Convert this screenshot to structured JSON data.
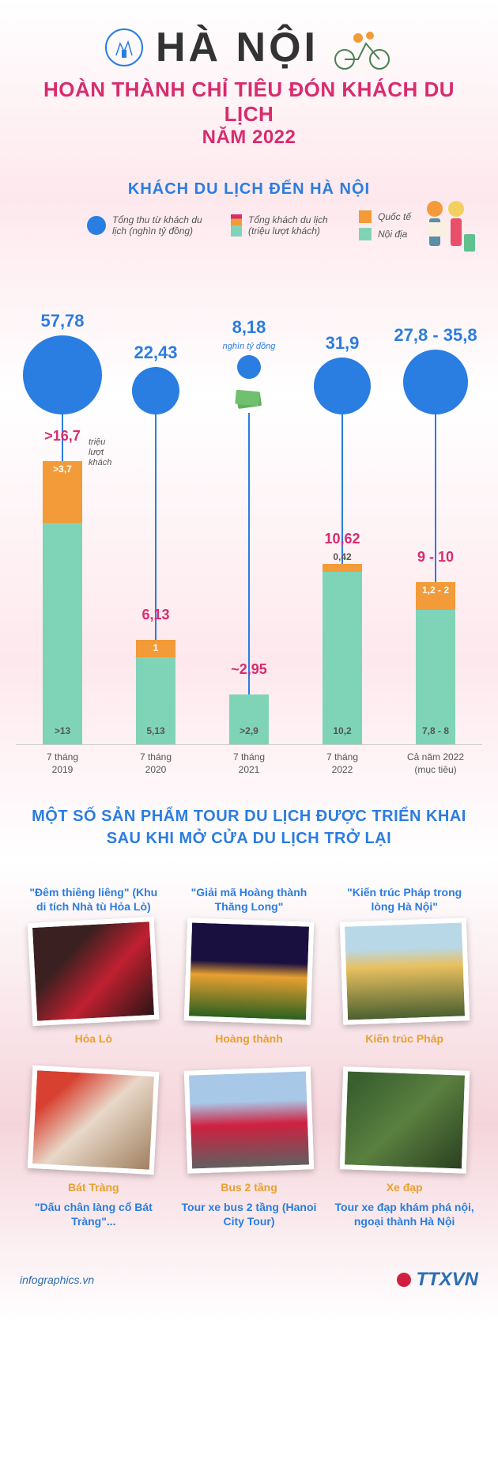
{
  "header": {
    "title": "HÀ NỘI",
    "subtitle1": "HOÀN THÀNH CHỈ TIÊU ĐÓN KHÁCH DU LỊCH",
    "subtitle2": "NĂM 2022"
  },
  "section1": {
    "title": "KHÁCH DU LỊCH ĐẾN HÀ NỘI",
    "legend": {
      "revenue": "Tổng thu từ khách du lịch (nghìn tỷ đồng)",
      "tourists": "Tổng khách du lịch (triệu lượt khách)",
      "intl": "Quốc tế",
      "domestic": "Nội địa",
      "revenue_color": "#2a7de1",
      "intl_color": "#f29b38",
      "domestic_color": "#7fd4b8",
      "total_color": "#d92b6e"
    },
    "revenue_unit": "nghìn tỷ đồng",
    "visitors_unit": "triệu lượt khách",
    "data": [
      {
        "period": "7 tháng\n2019",
        "revenue": 57.78,
        "revenue_label": "57,78",
        "circle_d": 100,
        "total": ">16,7",
        "intl_h": 78,
        "intl_label": ">3,7",
        "dom_h": 280,
        "dom_label": ">13",
        "stem_h": 62
      },
      {
        "period": "7 tháng\n2020",
        "revenue": 22.43,
        "revenue_label": "22,43",
        "circle_d": 60,
        "total": "6,13",
        "intl_h": 22,
        "intl_label": "1",
        "dom_h": 110,
        "dom_label": "5,13",
        "stem_h": 288
      },
      {
        "period": "7 tháng\n2021",
        "revenue": 8.18,
        "revenue_label": "8,18",
        "circle_d": 30,
        "total": "~2,95",
        "intl_h": 0,
        "intl_label": "",
        "dom_h": 63,
        "dom_label": ">2,9",
        "stem_h": 357,
        "money": true
      },
      {
        "period": "7 tháng\n2022",
        "revenue": 31.9,
        "revenue_label": "31,9",
        "circle_d": 72,
        "total": "10,62",
        "intl_h": 10,
        "intl_label": "0,42",
        "dom_h": 218,
        "dom_label": "10,2",
        "stem_h": 192
      },
      {
        "period": "Cả năm 2022\n(mục tiêu)",
        "revenue": null,
        "revenue_label": "27,8 - 35,8",
        "circle_d": 82,
        "total": "9 - 10",
        "intl_h": 35,
        "intl_label": "1,2 - 2",
        "dom_h": 170,
        "dom_label": "7,8 - 8",
        "stem_h": 215
      }
    ]
  },
  "section2": {
    "title1": "MỘT SỐ SẢN PHẨM TOUR DU LỊCH ĐƯỢC TRIỂN KHAI",
    "title2": "SAU KHI MỞ CỬA DU LỊCH TRỞ LẠI",
    "tours": [
      {
        "name": "\"Đêm thiêng liêng\" (Khu di tích Nhà tù Hỏa Lò)",
        "caption": "Hỏa Lò",
        "bg": "linear-gradient(135deg,#3a2020 30%,#c02030 60%,#2a1515)",
        "desc": ""
      },
      {
        "name": "\"Giải mã Hoàng thành Thăng Long\"",
        "caption": "Hoàng thành",
        "bg": "linear-gradient(180deg,#1a1040 40%,#e8a030 55%,#2a6020)",
        "desc": ""
      },
      {
        "name": "\"Kiến trúc Pháp trong lòng Hà Nội\"",
        "caption": "Kiến trúc Pháp",
        "bg": "linear-gradient(180deg,#b8d8e8 25%,#e8c060 45%,#4a6030)",
        "desc": ""
      },
      {
        "name": "",
        "caption": "Bát Tràng",
        "bg": "linear-gradient(135deg,#d84030 20%,#e8d8c8 50%,#a08060)",
        "desc": "\"Dấu chân làng cổ Bát Tràng\"..."
      },
      {
        "name": "",
        "caption": "Bus 2 tầng",
        "bg": "linear-gradient(180deg,#a8c8e8 30%,#d02040 55%,#606060)",
        "desc": "Tour xe bus 2 tầng (Hanoi City Tour)"
      },
      {
        "name": "",
        "caption": "Xe đạp",
        "bg": "linear-gradient(135deg,#3a6030 10%,#5a8040 50%,#2a4020)",
        "desc": "Tour xe đạp khám phá nội, ngoại thành Hà Nội"
      }
    ]
  },
  "footer": {
    "left": "infographics.vn",
    "right": "TTXVN"
  }
}
